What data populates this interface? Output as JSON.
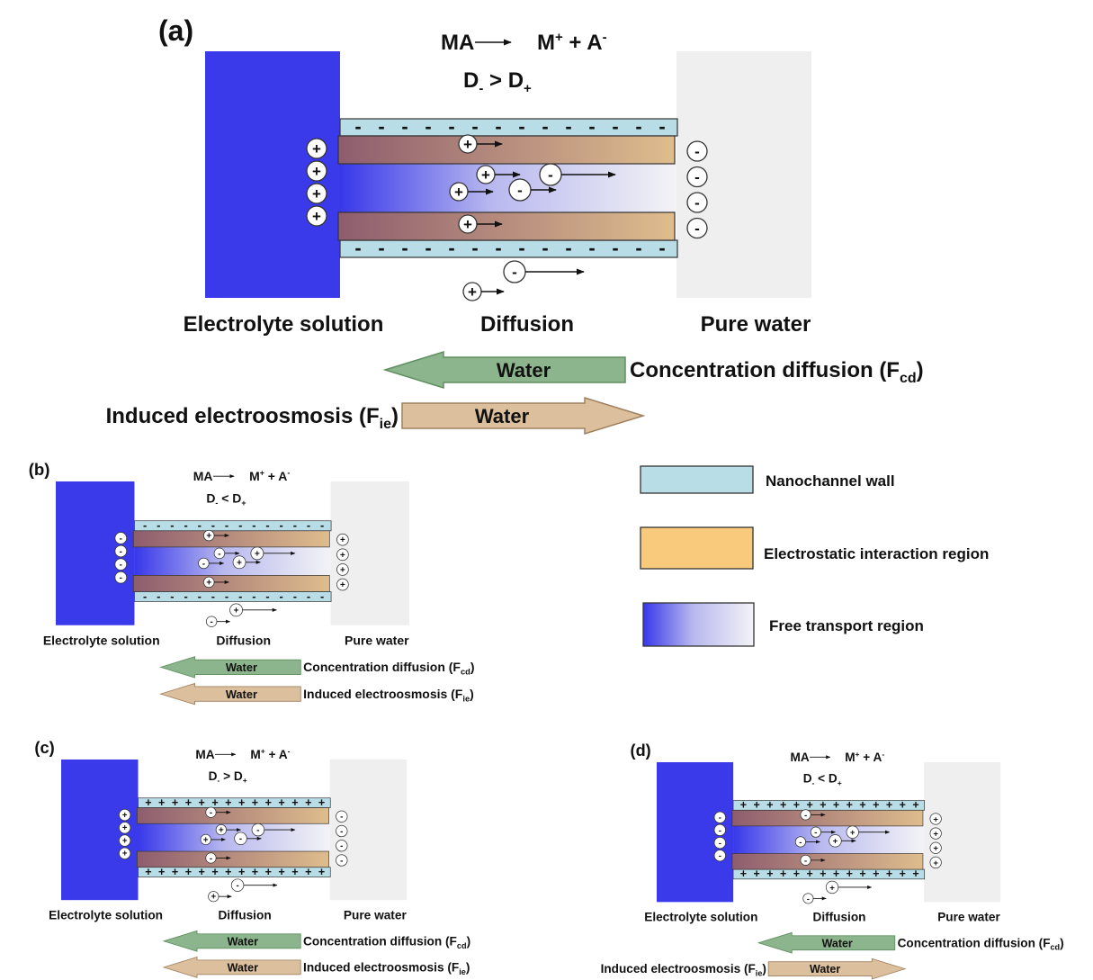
{
  "panels": [
    {
      "label": "(a)",
      "reaction": {
        "reactant": "MA",
        "cation": "M",
        "cation_charge": "+",
        "join": " + A",
        "anion_charge": "-"
      },
      "relation": {
        "d1": "D",
        "d1_sub": "-",
        "op": " > ",
        "d2": "D",
        "d2_sub": "+"
      },
      "wall_charge": "-",
      "left_ions": [
        "+",
        "+",
        "+",
        "+"
      ],
      "right_ions": [
        "-",
        "-",
        "-",
        "-"
      ],
      "channel_ions": [
        "+",
        "+",
        "+",
        "-",
        "-",
        "+"
      ],
      "outside_ions": [
        "-",
        "+"
      ],
      "labels": {
        "electrolyte": "Electrolyte solution",
        "diffusion": "Diffusion",
        "water": "Pure water"
      },
      "flows": [
        {
          "carrier": "Water",
          "name": "Concentration diffusion (F",
          "sub": "cd",
          "close": ")",
          "direction": "left"
        },
        {
          "carrier": "Water",
          "name": "Induced electroosmosis (F",
          "sub": "ie",
          "close": ")",
          "direction": "right"
        }
      ]
    },
    {
      "label": "(b)",
      "reaction": {
        "reactant": "MA",
        "cation": "M",
        "cation_charge": "+",
        "join": " + A",
        "anion_charge": "-"
      },
      "relation": {
        "d1": "D",
        "d1_sub": "-",
        "op": " < ",
        "d2": "D",
        "d2_sub": "+"
      },
      "wall_charge": "-",
      "left_ions": [
        "-",
        "-",
        "-",
        "-"
      ],
      "right_ions": [
        "+",
        "+",
        "+",
        "+"
      ],
      "channel_ions": [
        "+",
        "-",
        "-",
        "+",
        "+",
        "+"
      ],
      "outside_ions": [
        "+",
        "-"
      ],
      "labels": {
        "electrolyte": "Electrolyte solution",
        "diffusion": "Diffusion",
        "water": "Pure water"
      },
      "flows": [
        {
          "carrier": "Water",
          "name": "Concentration diffusion (F",
          "sub": "cd",
          "close": ")",
          "direction": "left"
        },
        {
          "carrier": "Water",
          "name": "Induced electroosmosis (F",
          "sub": "ie",
          "close": ")",
          "direction": "left"
        }
      ]
    },
    {
      "label": "(c)",
      "reaction": {
        "reactant": "MA",
        "cation": "M",
        "cation_charge": "+",
        "join": " + A",
        "anion_charge": "-"
      },
      "relation": {
        "d1": "D",
        "d1_sub": "-",
        "op": " > ",
        "d2": "D",
        "d2_sub": "+"
      },
      "wall_charge": "+",
      "left_ions": [
        "+",
        "+",
        "+",
        "+"
      ],
      "right_ions": [
        "-",
        "-",
        "-",
        "-"
      ],
      "channel_ions": [
        "-",
        "+",
        "+",
        "-",
        "-",
        "-"
      ],
      "outside_ions": [
        "-",
        "+"
      ],
      "labels": {
        "electrolyte": "Electrolyte solution",
        "diffusion": "Diffusion",
        "water": "Pure water"
      },
      "flows": [
        {
          "carrier": "Water",
          "name": "Concentration diffusion (F",
          "sub": "cd",
          "close": ")",
          "direction": "left"
        },
        {
          "carrier": "Water",
          "name": "Induced electroosmosis (F",
          "sub": "ie",
          "close": ")",
          "direction": "left"
        }
      ]
    },
    {
      "label": "(d)",
      "reaction": {
        "reactant": "MA",
        "cation": "M",
        "cation_charge": "+",
        "join": " + A",
        "anion_charge": "-"
      },
      "relation": {
        "d1": "D",
        "d1_sub": "-",
        "op": " < ",
        "d2": "D",
        "d2_sub": "+"
      },
      "wall_charge": "+",
      "left_ions": [
        "-",
        "-",
        "-",
        "-"
      ],
      "right_ions": [
        "+",
        "+",
        "+",
        "+"
      ],
      "channel_ions": [
        "-",
        "-",
        "-",
        "+",
        "+",
        "-"
      ],
      "outside_ions": [
        "+",
        "-"
      ],
      "labels": {
        "electrolyte": "Electrolyte solution",
        "diffusion": "Diffusion",
        "water": "Pure water"
      },
      "flows": [
        {
          "carrier": "Water",
          "name": "Concentration diffusion (F",
          "sub": "cd",
          "close": ")",
          "direction": "left"
        },
        {
          "carrier": "Water",
          "name": "Induced electroosmosis (F",
          "sub": "ie",
          "close": ")",
          "direction": "right"
        }
      ]
    }
  ],
  "legend": [
    {
      "label": "Nanochannel wall"
    },
    {
      "label": "Electrostatic interaction region"
    },
    {
      "label": "Free transport region"
    }
  ]
}
